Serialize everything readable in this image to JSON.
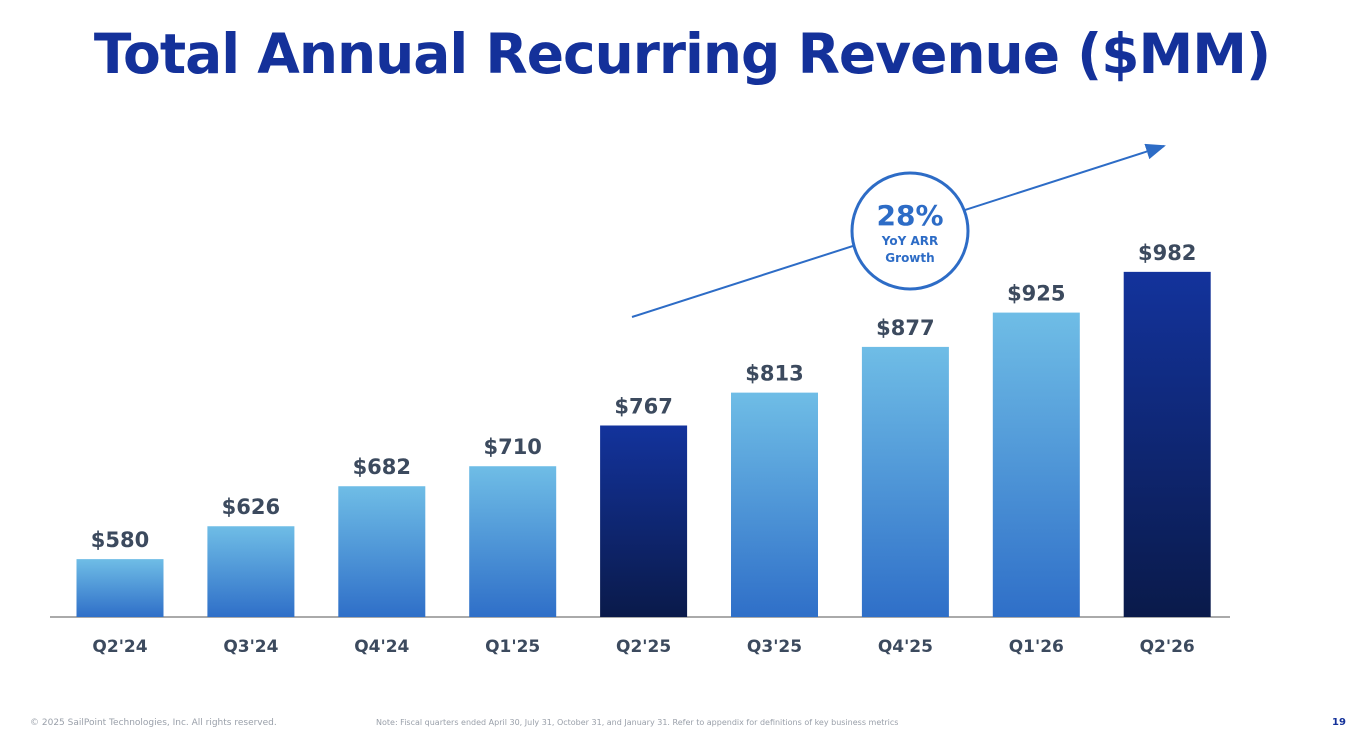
{
  "title": "Total Annual Recurring Revenue ($MM)",
  "callout": {
    "value": "28%",
    "line1": "YoY ARR",
    "line2": "Growth"
  },
  "footer": {
    "copyright": "© 2025 SailPoint Technologies, Inc. All rights reserved.",
    "note": "Note: Fiscal quarters ended April 30, July 31, October 31, and January 31.  Refer to appendix for definitions of key business metrics",
    "page": "19"
  },
  "colors": {
    "title": "#14319a",
    "light_top": "#6fbde6",
    "light_bottom": "#2f6fc8",
    "dark_top": "#13339c",
    "dark_bottom": "#0a1a4a",
    "label": "#3c4a5e"
  },
  "chart_data": {
    "type": "bar",
    "title": "Total Annual Recurring Revenue ($MM)",
    "categories": [
      "Q2'24",
      "Q3'24",
      "Q4'24",
      "Q1'25",
      "Q2'25",
      "Q3'25",
      "Q4'25",
      "Q1'26",
      "Q2'26"
    ],
    "values": [
      580,
      626,
      682,
      710,
      767,
      813,
      877,
      925,
      982
    ],
    "data_labels": [
      "$580",
      "$626",
      "$682",
      "$710",
      "$767",
      "$813",
      "$877",
      "$925",
      "$982"
    ],
    "highlighted": [
      false,
      false,
      false,
      false,
      true,
      false,
      false,
      false,
      true
    ],
    "ylim": [
      499,
      1000
    ],
    "grid": false,
    "xlabel": "",
    "ylabel": ""
  }
}
